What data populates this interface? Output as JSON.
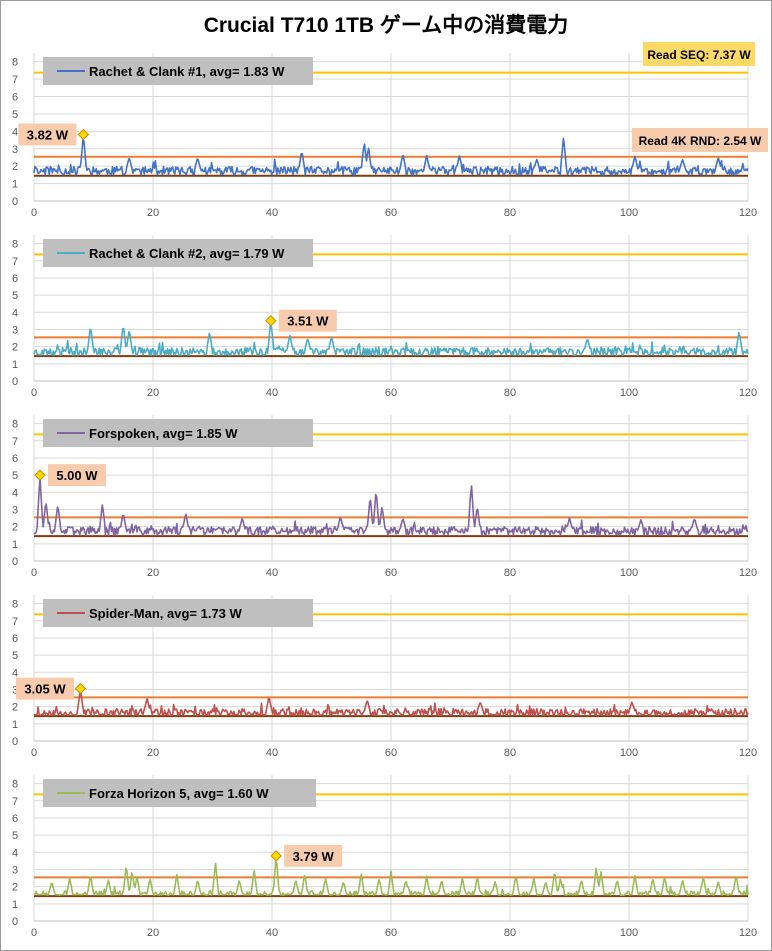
{
  "title": "Crucial T710 1TB ゲーム中の消費電力",
  "colors": {
    "read_seq": "#FFC000",
    "read_4k": "#ED7D31",
    "idle_line": "#843C0C",
    "legend_bg": "#BFBFBF",
    "peak_box": "#F8CBAD",
    "seq_box": "#FFD966",
    "marker": "#FFD700",
    "grid": "#D9D9D9"
  },
  "chart_data": [
    {
      "type": "line",
      "legend": "Rachet & Clank #1,  avg=  1.83 W",
      "color": "#4472C4",
      "avg": 1.83,
      "peak": {
        "x": 8.3,
        "y": 3.82,
        "label": "3.82 W"
      },
      "spikes": [
        [
          8.3,
          3.82
        ],
        [
          16.0,
          2.5
        ],
        [
          27.5,
          2.5
        ],
        [
          45.0,
          2.9
        ],
        [
          55.5,
          3.4
        ],
        [
          56.2,
          3.1
        ],
        [
          62.0,
          2.7
        ],
        [
          66.0,
          2.6
        ],
        [
          71.5,
          2.6
        ],
        [
          84.5,
          2.4
        ],
        [
          89.0,
          3.7
        ],
        [
          101.0,
          2.6
        ],
        [
          109.0,
          2.4
        ],
        [
          115.0,
          2.5
        ]
      ],
      "seed": 11,
      "x_ticks": [
        0,
        20,
        40,
        60,
        80,
        100,
        120
      ],
      "y_ticks": [
        0,
        1,
        2,
        3,
        4,
        5,
        6,
        7,
        8
      ],
      "xlim": [
        0,
        120
      ],
      "ylim": [
        0,
        8.5
      ],
      "ref_lines": {
        "read_seq": 7.37,
        "read_4k": 2.54,
        "idle": 1.45
      },
      "ref_labels": {
        "read_seq": "Read SEQ:  7.37 W",
        "read_4k": "Read 4K RND:  2.54 W"
      }
    },
    {
      "type": "line",
      "legend": "Rachet & Clank #2,  avg=  1.79 W",
      "color": "#4BACC6",
      "avg": 1.79,
      "peak": {
        "x": 39.8,
        "y": 3.51,
        "label": "3.51 W"
      },
      "spikes": [
        [
          9.5,
          3.2
        ],
        [
          15.0,
          3.3
        ],
        [
          16.0,
          3.0
        ],
        [
          29.5,
          2.8
        ],
        [
          39.8,
          3.51
        ],
        [
          43.0,
          2.7
        ],
        [
          46.0,
          2.5
        ],
        [
          50.0,
          2.6
        ],
        [
          93.0,
          2.5
        ],
        [
          118.5,
          2.9
        ]
      ],
      "seed": 23,
      "x_ticks": [
        0,
        20,
        40,
        60,
        80,
        100,
        120
      ],
      "y_ticks": [
        0,
        1,
        2,
        3,
        4,
        5,
        6,
        7,
        8
      ],
      "xlim": [
        0,
        120
      ],
      "ylim": [
        0,
        8.5
      ],
      "ref_lines": {
        "read_seq": 7.37,
        "read_4k": 2.54,
        "idle": 1.45
      }
    },
    {
      "type": "line",
      "legend": "Forspoken,  avg=  1.85 W",
      "color": "#8064A2",
      "avg": 1.85,
      "peak": {
        "x": 1.0,
        "y": 5.0,
        "label": "5.00 W"
      },
      "spikes": [
        [
          1.0,
          5.0
        ],
        [
          2.0,
          3.5
        ],
        [
          4.0,
          3.3
        ],
        [
          11.5,
          3.3
        ],
        [
          15.0,
          2.8
        ],
        [
          25.5,
          2.8
        ],
        [
          35.0,
          2.5
        ],
        [
          51.5,
          2.6
        ],
        [
          56.5,
          3.8
        ],
        [
          57.5,
          4.2
        ],
        [
          58.5,
          3.2
        ],
        [
          62.0,
          2.5
        ],
        [
          73.5,
          4.6
        ],
        [
          74.5,
          3.2
        ],
        [
          90.0,
          2.5
        ],
        [
          102.0,
          2.4
        ],
        [
          111.0,
          2.5
        ]
      ],
      "seed": 37,
      "x_ticks": [
        0,
        20,
        40,
        60,
        80,
        100,
        120
      ],
      "y_ticks": [
        0,
        1,
        2,
        3,
        4,
        5,
        6,
        7,
        8
      ],
      "xlim": [
        0,
        120
      ],
      "ylim": [
        0,
        8.5
      ],
      "ref_lines": {
        "read_seq": 7.37,
        "read_4k": 2.54,
        "idle": 1.45
      }
    },
    {
      "type": "line",
      "legend": "Spider-Man,  avg=  1.73 W",
      "color": "#C0504D",
      "avg": 1.73,
      "peak": {
        "x": 7.8,
        "y": 3.05,
        "label": "3.05 W"
      },
      "spikes": [
        [
          7.8,
          3.05
        ],
        [
          19.0,
          2.5
        ],
        [
          39.5,
          2.6
        ],
        [
          56.0,
          2.4
        ],
        [
          75.0,
          2.3
        ],
        [
          100.5,
          2.3
        ]
      ],
      "seed": 53,
      "x_ticks": [
        0,
        20,
        40,
        60,
        80,
        100,
        120
      ],
      "y_ticks": [
        0,
        1,
        2,
        3,
        4,
        5,
        6,
        7,
        8
      ],
      "xlim": [
        0,
        120
      ],
      "ylim": [
        0,
        8.5
      ],
      "ref_lines": {
        "read_seq": 7.37,
        "read_4k": 2.54,
        "idle": 1.45
      }
    },
    {
      "type": "line",
      "legend": "Forza Horizon 5,  avg=  1.60 W",
      "color": "#9BBB59",
      "avg": 1.6,
      "peak": {
        "x": 40.7,
        "y": 3.79,
        "label": "3.79 W"
      },
      "spikes": [
        [
          3.0,
          2.3
        ],
        [
          6.0,
          2.5
        ],
        [
          9.5,
          2.7
        ],
        [
          12.5,
          2.4
        ],
        [
          15.5,
          3.3
        ],
        [
          16.5,
          2.9
        ],
        [
          17.3,
          2.6
        ],
        [
          19.5,
          2.5
        ],
        [
          24.0,
          2.7
        ],
        [
          27.5,
          2.4
        ],
        [
          30.5,
          3.4
        ],
        [
          34.5,
          2.4
        ],
        [
          37.0,
          3.0
        ],
        [
          40.7,
          3.79
        ],
        [
          44.0,
          2.4
        ],
        [
          45.5,
          2.8
        ],
        [
          49.0,
          2.5
        ],
        [
          52.0,
          2.3
        ],
        [
          55.0,
          2.8
        ],
        [
          58.0,
          2.5
        ],
        [
          60.0,
          2.9
        ],
        [
          62.5,
          2.4
        ],
        [
          66.0,
          2.6
        ],
        [
          68.5,
          2.4
        ],
        [
          72.0,
          2.5
        ],
        [
          74.5,
          2.6
        ],
        [
          77.5,
          2.3
        ],
        [
          81.0,
          2.7
        ],
        [
          84.0,
          2.5
        ],
        [
          86.0,
          2.3
        ],
        [
          87.5,
          2.9
        ],
        [
          88.5,
          2.5
        ],
        [
          92.0,
          2.4
        ],
        [
          94.5,
          3.2
        ],
        [
          95.3,
          2.9
        ],
        [
          98.0,
          2.4
        ],
        [
          101.0,
          2.7
        ],
        [
          104.0,
          2.5
        ],
        [
          106.0,
          2.6
        ],
        [
          109.0,
          2.4
        ],
        [
          112.5,
          2.6
        ],
        [
          115.0,
          2.3
        ],
        [
          118.0,
          2.7
        ]
      ],
      "seed": 71,
      "x_ticks": [
        0,
        20,
        40,
        60,
        80,
        100,
        120
      ],
      "y_ticks": [
        0,
        1,
        2,
        3,
        4,
        5,
        6,
        7,
        8
      ],
      "xlim": [
        0,
        120
      ],
      "ylim": [
        0,
        8.5
      ],
      "ref_lines": {
        "read_seq": 7.37,
        "read_4k": 2.54,
        "idle": 1.45
      }
    }
  ]
}
